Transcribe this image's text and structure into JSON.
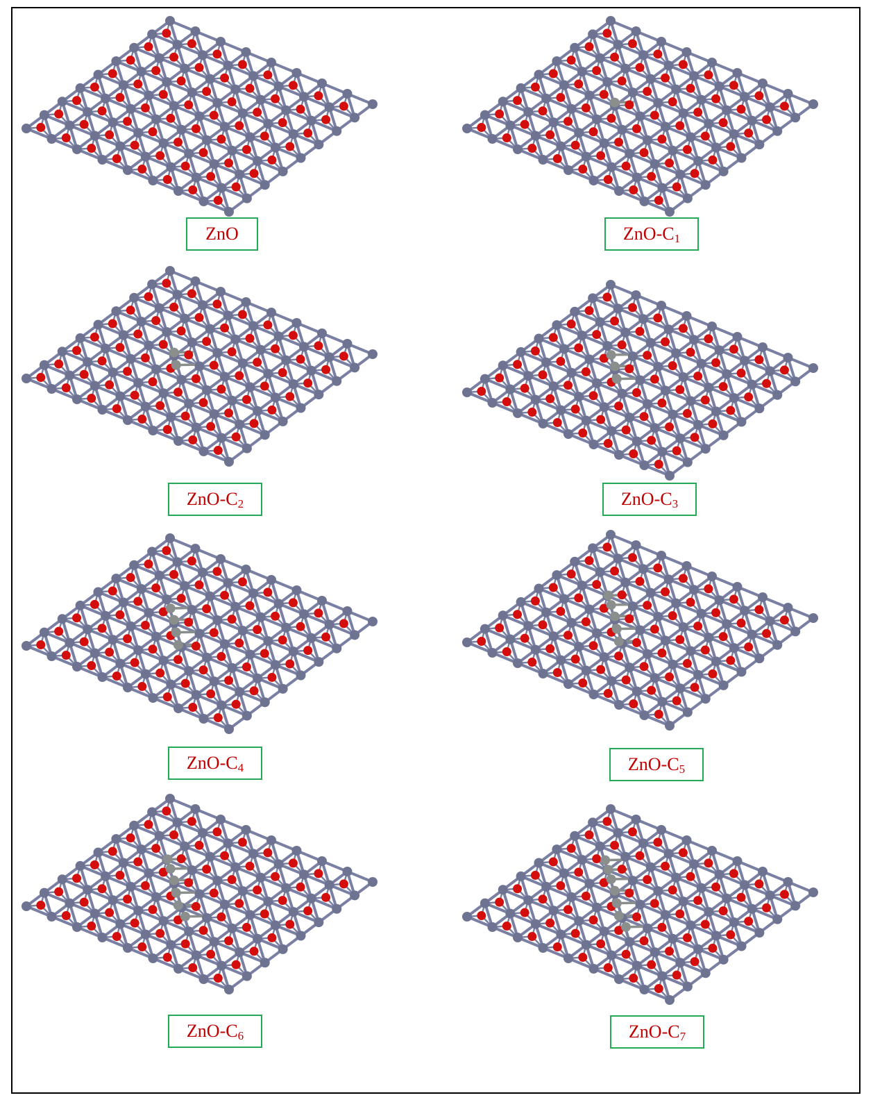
{
  "panels": [
    {
      "id": "zno",
      "label": "ZnO",
      "subscript": "",
      "carbon_atoms": 0,
      "colors": {
        "zn": "#6e7391",
        "o": "#d40d0d",
        "c": "#8a8f8d",
        "bond": "#7a80a3",
        "label": "#c00000",
        "label_border": "#22aa55"
      }
    },
    {
      "id": "zno-c1",
      "label": "ZnO-C",
      "subscript": "1",
      "carbon_atoms": 1
    },
    {
      "id": "zno-c2",
      "label": "ZnO-C",
      "subscript": "2",
      "carbon_atoms": 2
    },
    {
      "id": "zno-c3",
      "label": "ZnO-C",
      "subscript": "3",
      "carbon_atoms": 3
    },
    {
      "id": "zno-c4",
      "label": "ZnO-C",
      "subscript": "4",
      "carbon_atoms": 4
    },
    {
      "id": "zno-c5",
      "label": "ZnO-C",
      "subscript": "5",
      "carbon_atoms": 5
    },
    {
      "id": "zno-c6",
      "label": "ZnO-C",
      "subscript": "6",
      "carbon_atoms": 6
    },
    {
      "id": "zno-c7",
      "label": "ZnO-C",
      "subscript": "7",
      "carbon_atoms": 7
    }
  ],
  "colors": {
    "zinc_atom": "#6e7391",
    "oxygen_atom": "#d40d0d",
    "carbon_atom": "#8a8f8d",
    "bond": "#7a80a3",
    "label_text": "#c00000",
    "label_border": "#22aa55",
    "frame": "#000000"
  }
}
